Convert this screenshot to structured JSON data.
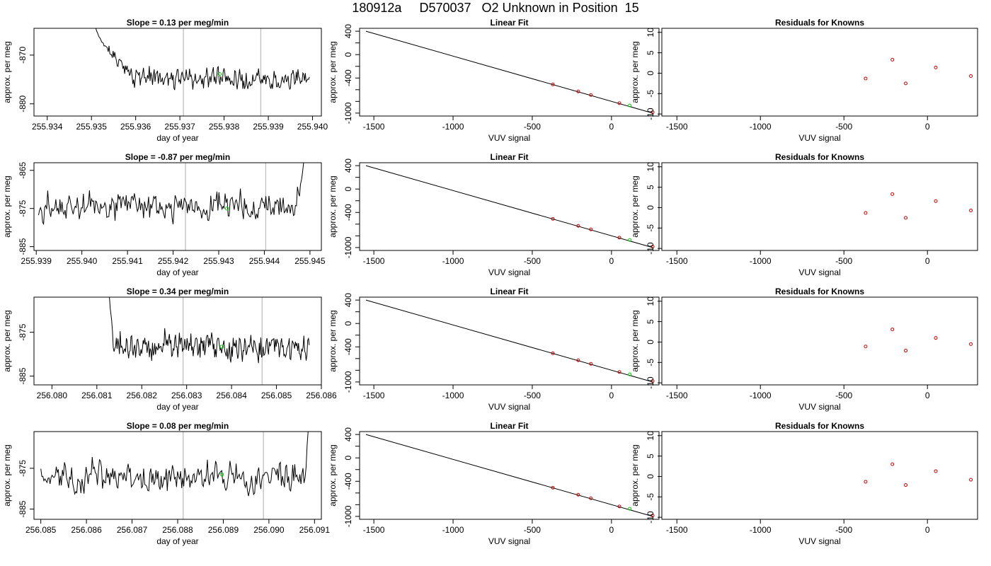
{
  "title": "180912a     D570037   O2 Unknown in Position  15",
  "colors": {
    "trace": "#000000",
    "green_point": "#00cc00",
    "known_points": "#cc0000",
    "vline": "#bebebe"
  },
  "chart_data": [
    {
      "row": 1,
      "timeseries": {
        "type": "line",
        "title": "Slope =  0.13  per meg/min",
        "xlabel": "day of year",
        "ylabel": "approx. per meg",
        "xlim": [
          255.9337,
          255.9402
        ],
        "ylim": [
          -882.5,
          -864.5
        ],
        "xticks": [
          "255.934",
          "255.935",
          "255.936",
          "255.937",
          "255.938",
          "255.939",
          "255.940"
        ],
        "yticks": [
          "-870",
          "-880"
        ],
        "vlines": [
          255.93708,
          255.93883
        ],
        "marker": {
          "x": 255.9379,
          "y": -873.9
        },
        "start": 255.9351,
        "end": 255.93993,
        "level": -874.5,
        "amp": 1.5,
        "seed": 11,
        "spike": "start",
        "spike_y": -864.5,
        "spike_len": 0.0009
      },
      "linear_fit": {
        "type": "scatter",
        "title": "Linear Fit",
        "xlabel": "VUV signal",
        "ylabel": "approx. per meg",
        "xlim": [
          -1590,
          300
        ],
        "ylim": [
          -1050,
          450
        ],
        "xticks": [
          -1500,
          -1000,
          -500,
          0
        ],
        "yticks": [
          400,
          0,
          -400,
          -1000
        ],
        "line": [
          [
            -1550,
            400
          ],
          [
            260,
            -1000
          ]
        ],
        "knowns": [
          [
            -370,
            -510
          ],
          [
            -210,
            -630
          ],
          [
            -130,
            -690
          ],
          [
            50,
            -830
          ],
          [
            260,
            -985
          ]
        ],
        "unknown": [
          115,
          -870
        ]
      },
      "residuals": {
        "type": "scatter",
        "title": "Residuals for Knowns",
        "xlabel": "VUV signal",
        "ylabel": "approx. per meg",
        "xlim": [
          -1590,
          300
        ],
        "ylim": [
          -10.5,
          11
        ],
        "xticks": [
          -1500,
          -1000,
          -500,
          0
        ],
        "yticks": [
          10,
          5,
          0,
          -5,
          -10
        ],
        "points": [
          [
            -370,
            -1.3
          ],
          [
            -210,
            3.3
          ],
          [
            -130,
            -2.5
          ],
          [
            50,
            1.4
          ],
          [
            260,
            -0.7
          ]
        ]
      }
    },
    {
      "row": 2,
      "timeseries": {
        "type": "line",
        "title": "Slope =  -0.87  per meg/min",
        "xlabel": "day of year",
        "ylabel": "approx. per meg",
        "xlim": [
          255.93895,
          255.94525
        ],
        "ylim": [
          -886,
          -863
        ],
        "xticks": [
          "255.939",
          "255.940",
          "255.941",
          "255.942",
          "255.943",
          "255.944",
          "255.945"
        ],
        "yticks": [
          "-865",
          "-875",
          "-885"
        ],
        "vlines": [
          255.94227,
          255.94403
        ],
        "marker": {
          "x": 255.94318,
          "y": -875
        },
        "start": 255.93905,
        "end": 255.94486,
        "level": -874.5,
        "amp": 2.6,
        "seed": 29,
        "spike": "end",
        "spike_y": -863,
        "spike_len": 0.00018
      },
      "linear_fit": {
        "type": "scatter",
        "title": "Linear Fit",
        "xlabel": "VUV signal",
        "ylabel": "approx. per meg",
        "xlim": [
          -1590,
          300
        ],
        "ylim": [
          -1050,
          450
        ],
        "xticks": [
          -1500,
          -1000,
          -500,
          0
        ],
        "yticks": [
          400,
          0,
          -400,
          -1000
        ],
        "line": [
          [
            -1550,
            400
          ],
          [
            260,
            -1000
          ]
        ],
        "knowns": [
          [
            -370,
            -510
          ],
          [
            -210,
            -630
          ],
          [
            -130,
            -690
          ],
          [
            50,
            -830
          ],
          [
            260,
            -985
          ]
        ],
        "unknown": [
          115,
          -870
        ]
      },
      "residuals": {
        "type": "scatter",
        "title": "Residuals for Knowns",
        "xlabel": "VUV signal",
        "ylabel": "approx. per meg",
        "xlim": [
          -1590,
          300
        ],
        "ylim": [
          -10.5,
          11
        ],
        "xticks": [
          -1500,
          -1000,
          -500,
          0
        ],
        "yticks": [
          10,
          5,
          0,
          -5,
          -10
        ],
        "points": [
          [
            -370,
            -1.3
          ],
          [
            -210,
            3.3
          ],
          [
            -130,
            -2.5
          ],
          [
            50,
            1.6
          ],
          [
            260,
            -0.7
          ]
        ]
      }
    },
    {
      "row": 3,
      "timeseries": {
        "type": "line",
        "title": "Slope =  0.34  per meg/min",
        "xlabel": "day of year",
        "ylabel": "approx. per meg",
        "xlim": [
          256.0796,
          256.086
        ],
        "ylim": [
          -887,
          -867
        ],
        "xticks": [
          "256.080",
          "256.081",
          "256.082",
          "256.083",
          "256.084",
          "256.085",
          "256.086"
        ],
        "yticks": [
          "-875",
          "-885"
        ],
        "vlines": [
          256.08292,
          256.08468
        ],
        "marker": {
          "x": 256.08378,
          "y": -878.3
        },
        "start": 256.08128,
        "end": 256.08573,
        "level": -878,
        "amp": 2.1,
        "seed": 47,
        "spike": "start",
        "spike_y": -867,
        "spike_len": 0.00012
      },
      "linear_fit": {
        "type": "scatter",
        "title": "Linear Fit",
        "xlabel": "VUV signal",
        "ylabel": "approx. per meg",
        "xlim": [
          -1590,
          300
        ],
        "ylim": [
          -1050,
          450
        ],
        "xticks": [
          -1500,
          -1000,
          -500,
          0
        ],
        "yticks": [
          400,
          0,
          -400,
          -1000
        ],
        "line": [
          [
            -1550,
            400
          ],
          [
            260,
            -1000
          ]
        ],
        "knowns": [
          [
            -370,
            -510
          ],
          [
            -210,
            -630
          ],
          [
            -130,
            -690
          ],
          [
            50,
            -830
          ],
          [
            260,
            -985
          ]
        ],
        "unknown": [
          115,
          -870
        ]
      },
      "residuals": {
        "type": "scatter",
        "title": "Residuals for Knowns",
        "xlabel": "VUV signal",
        "ylabel": "approx. per meg",
        "xlim": [
          -1590,
          300
        ],
        "ylim": [
          -10.5,
          11
        ],
        "xticks": [
          -1500,
          -1000,
          -500,
          0
        ],
        "yticks": [
          10,
          5,
          0,
          -5,
          -10
        ],
        "points": [
          [
            -370,
            -1.1
          ],
          [
            -210,
            3.1
          ],
          [
            -130,
            -2.1
          ],
          [
            50,
            1.0
          ],
          [
            260,
            -0.5
          ]
        ]
      }
    },
    {
      "row": 4,
      "timeseries": {
        "type": "line",
        "title": "Slope =  0.08  per meg/min",
        "xlabel": "day of year",
        "ylabel": "approx. per meg",
        "xlim": [
          256.08485,
          256.09115
        ],
        "ylim": [
          -887.5,
          -866
        ],
        "xticks": [
          "256.085",
          "256.086",
          "256.087",
          "256.088",
          "256.089",
          "256.090",
          "256.091"
        ],
        "yticks": [
          "-875",
          "-885"
        ],
        "vlines": [
          256.08812,
          256.08988
        ],
        "marker": {
          "x": 256.08897,
          "y": -876.5
        },
        "start": 256.085,
        "end": 256.09086,
        "level": -877.5,
        "amp": 2.6,
        "seed": 73,
        "spike": "end",
        "spike_y": -866,
        "spike_len": 7e-05
      },
      "linear_fit": {
        "type": "scatter",
        "title": "Linear Fit",
        "xlabel": "VUV signal",
        "ylabel": "approx. per meg",
        "xlim": [
          -1590,
          300
        ],
        "ylim": [
          -1050,
          450
        ],
        "xticks": [
          -1500,
          -1000,
          -500,
          0
        ],
        "yticks": [
          400,
          0,
          -400,
          -1000
        ],
        "line": [
          [
            -1550,
            400
          ],
          [
            260,
            -1000
          ]
        ],
        "knowns": [
          [
            -370,
            -510
          ],
          [
            -210,
            -630
          ],
          [
            -130,
            -690
          ],
          [
            50,
            -830
          ],
          [
            260,
            -985
          ]
        ],
        "unknown": [
          115,
          -870
        ]
      },
      "residuals": {
        "type": "scatter",
        "title": "Residuals for Knowns",
        "xlabel": "VUV signal",
        "ylabel": "approx. per meg",
        "xlim": [
          -1590,
          300
        ],
        "ylim": [
          -10.5,
          11
        ],
        "xticks": [
          -1500,
          -1000,
          -500,
          0
        ],
        "yticks": [
          10,
          5,
          0,
          -5,
          -10
        ],
        "points": [
          [
            -370,
            -1.3
          ],
          [
            -210,
            3.0
          ],
          [
            -130,
            -2.1
          ],
          [
            50,
            1.3
          ],
          [
            260,
            -0.8
          ]
        ]
      }
    }
  ]
}
